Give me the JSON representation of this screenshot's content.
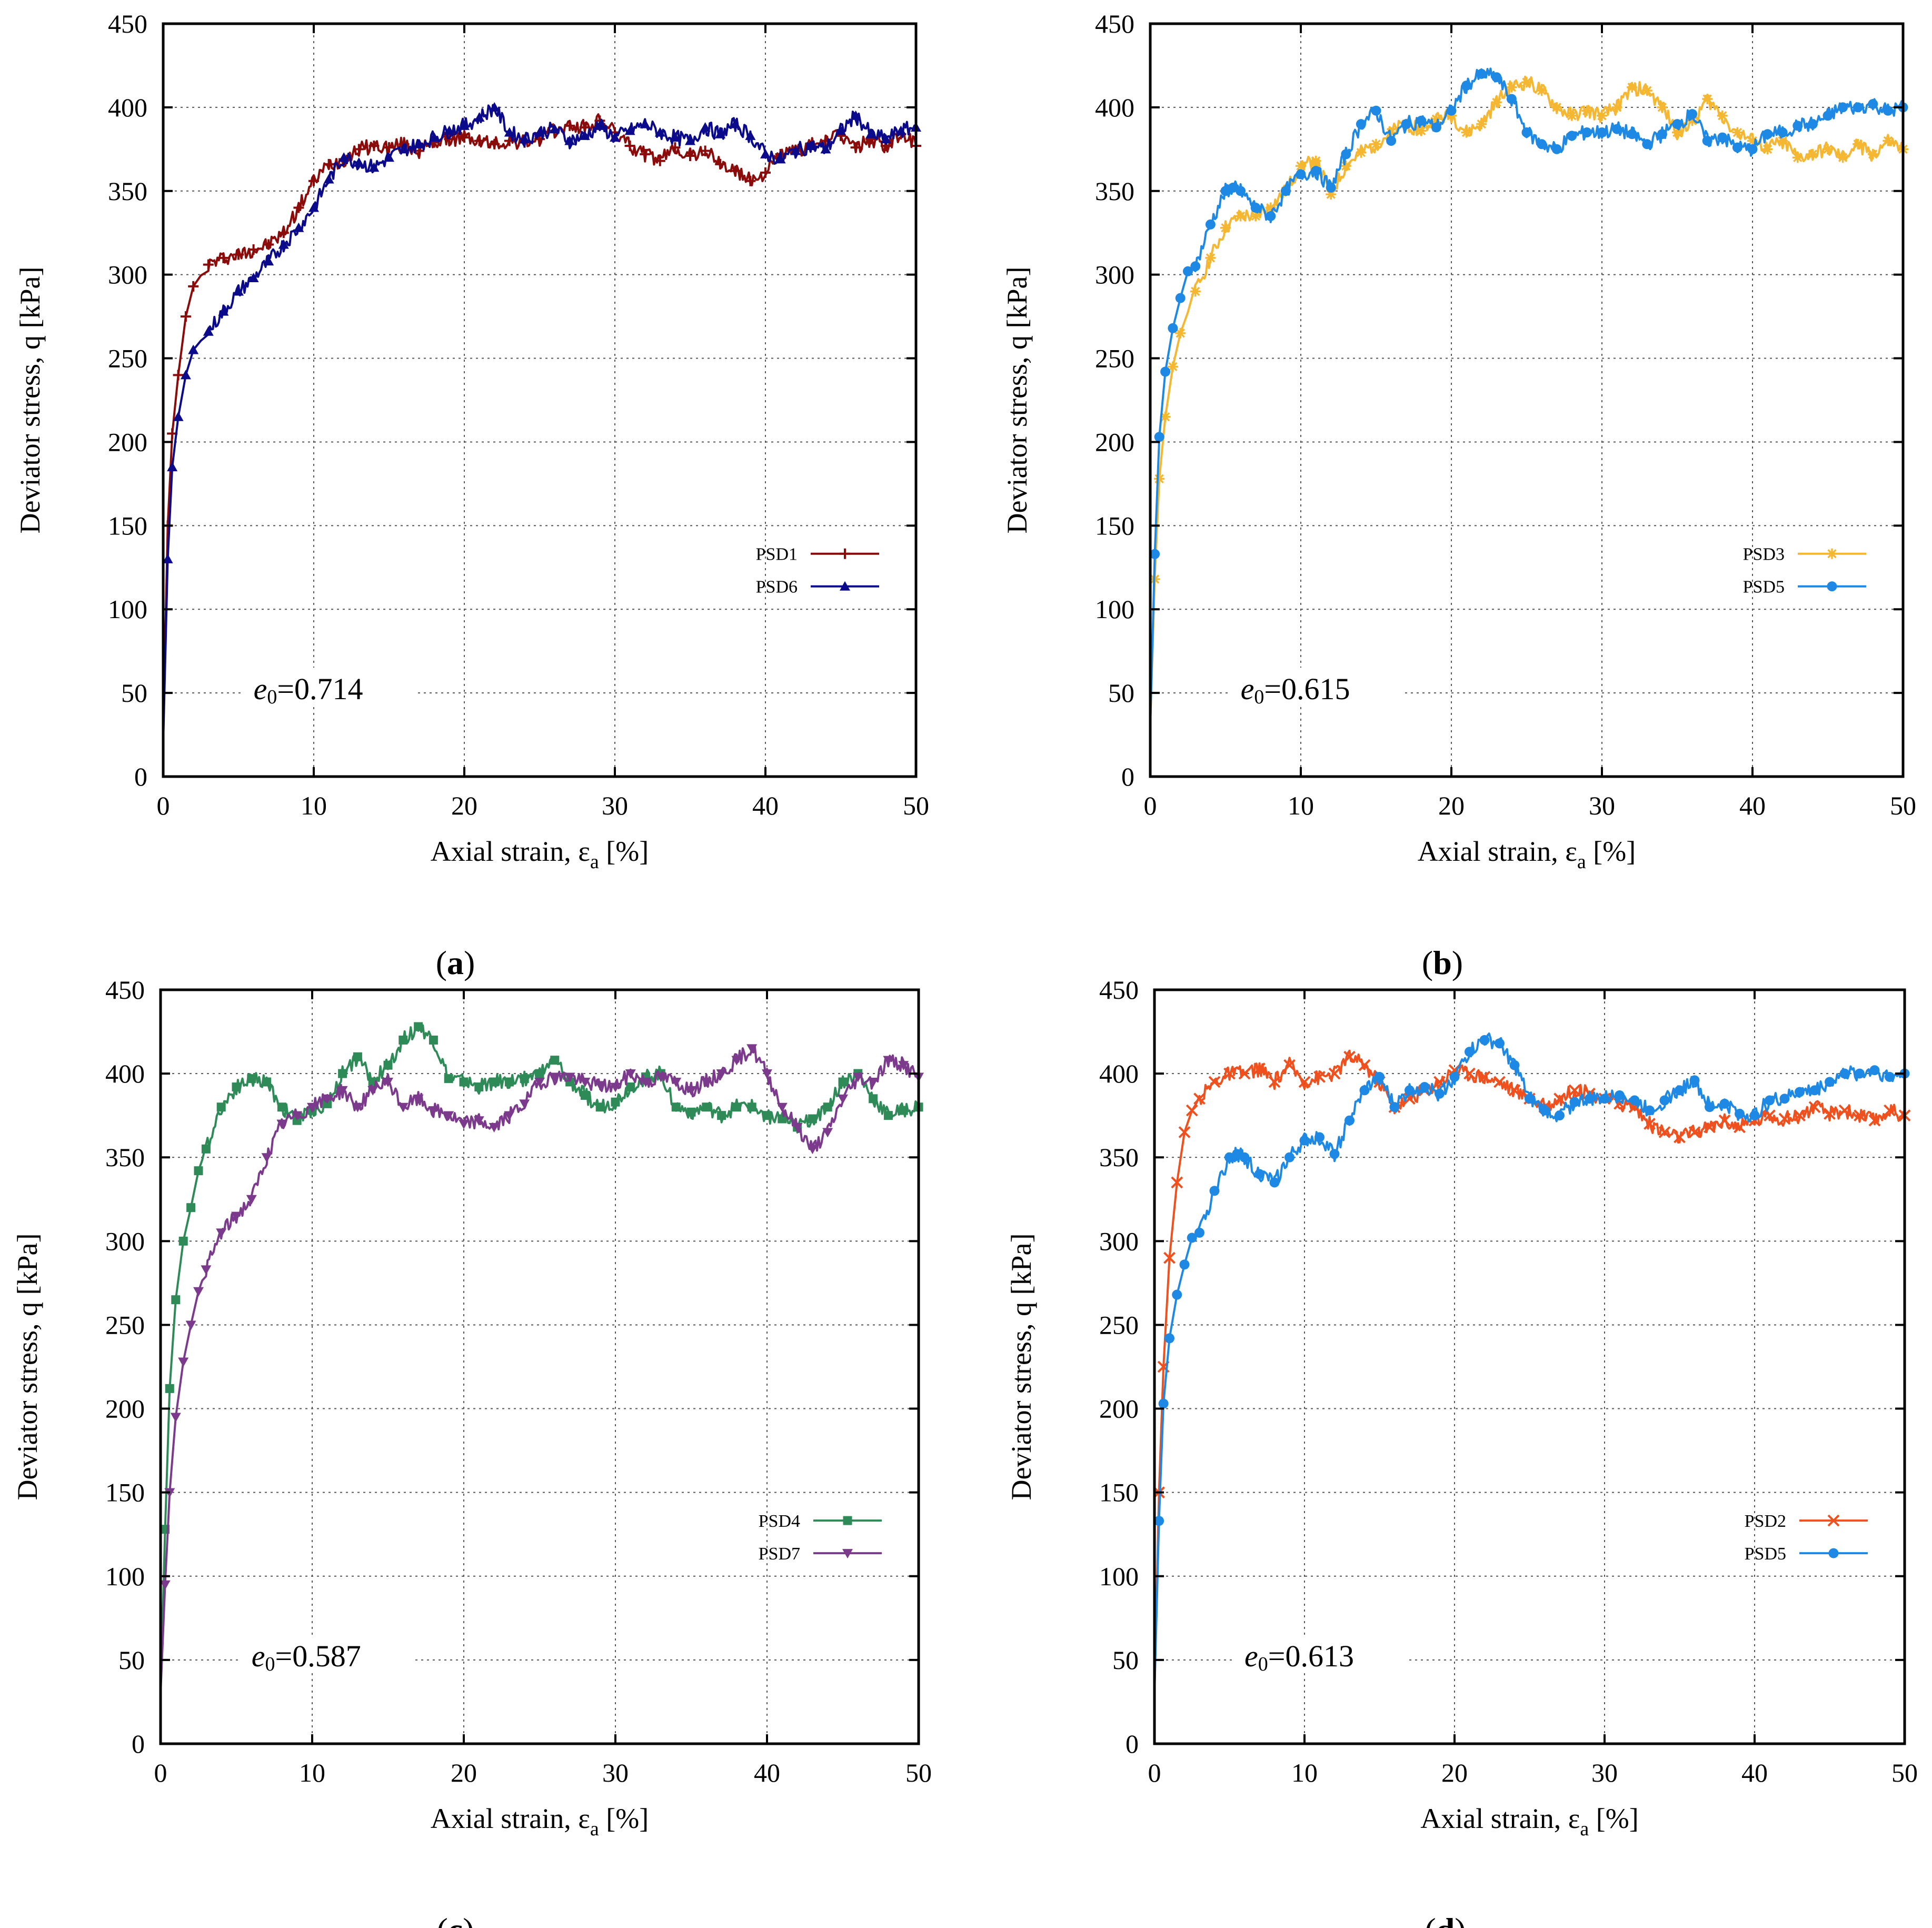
{
  "chart_data": [
    {
      "type": "line",
      "panel": "(a)",
      "xlabel": "Axial strain, ε",
      "xlabel_sub": "a",
      "xlabel_suffix": " [%]",
      "ylabel": "Deviator stress, q [kPa]",
      "xlim": [
        0,
        50
      ],
      "ylim": [
        0,
        450
      ],
      "xticks": [
        0,
        10,
        20,
        30,
        40,
        50
      ],
      "yticks": [
        0,
        50,
        100,
        150,
        200,
        250,
        300,
        350,
        400,
        450
      ],
      "grid": true,
      "legend_position": "right",
      "annotation": {
        "text_e": "e",
        "text_sub": "0",
        "text_value": "=0.714",
        "x": 6,
        "y": 50
      },
      "series": [
        {
          "name": "PSD1",
          "color": "#8b0a0a",
          "marker": "plus",
          "x": [
            0,
            0.3,
            0.6,
            1,
            1.5,
            2,
            3,
            4,
            5,
            6,
            7,
            8,
            9,
            10,
            11,
            12,
            13,
            14,
            15,
            16,
            17,
            18,
            19,
            20,
            21,
            22,
            23,
            24,
            25,
            26,
            27,
            28,
            29,
            30,
            31,
            32,
            33,
            34,
            35,
            36,
            37,
            38,
            39,
            40,
            41,
            42,
            43,
            44,
            45,
            46,
            47,
            48,
            49,
            50
          ],
          "y": [
            25,
            150,
            205,
            240,
            275,
            293,
            306,
            310,
            312,
            315,
            318,
            325,
            340,
            356,
            366,
            369,
            375,
            377,
            376,
            378,
            374,
            379,
            381,
            382,
            380,
            378,
            380,
            379,
            381,
            386,
            389,
            388,
            392,
            385,
            377,
            372,
            368,
            376,
            371,
            374,
            366,
            362,
            356,
            361,
            372,
            374,
            377,
            380,
            383,
            376,
            381,
            377,
            384,
            377
          ]
        },
        {
          "name": "PSD6",
          "color": "#0a0a8b",
          "marker": "triangle",
          "x": [
            0,
            0.3,
            0.6,
            1,
            1.5,
            2,
            3,
            4,
            5,
            6,
            7,
            8,
            9,
            10,
            11,
            12,
            13,
            14,
            15,
            16,
            17,
            18,
            19,
            20,
            21,
            22,
            23,
            24,
            25,
            26,
            27,
            28,
            29,
            30,
            31,
            32,
            33,
            34,
            35,
            36,
            37,
            38,
            39,
            40,
            41,
            42,
            43,
            44,
            45,
            46,
            47,
            48,
            49,
            50
          ],
          "y": [
            20,
            130,
            185,
            215,
            240,
            255,
            266,
            278,
            290,
            298,
            308,
            318,
            328,
            340,
            357,
            370,
            367,
            364,
            370,
            375,
            378,
            382,
            386,
            389,
            394,
            400,
            385,
            381,
            385,
            387,
            380,
            383,
            389,
            382,
            386,
            390,
            385,
            382,
            380,
            388,
            384,
            390,
            383,
            372,
            369,
            374,
            377,
            375,
            386,
            395,
            384,
            381,
            386,
            388
          ]
        }
      ]
    },
    {
      "type": "line",
      "panel": "(b)",
      "xlabel": "Axial strain, ε",
      "xlabel_sub": "a",
      "xlabel_suffix": " [%]",
      "ylabel": "Deviator stress, q [kPa]",
      "xlim": [
        0,
        50
      ],
      "ylim": [
        0,
        450
      ],
      "xticks": [
        0,
        10,
        20,
        30,
        40,
        50
      ],
      "yticks": [
        0,
        50,
        100,
        150,
        200,
        250,
        300,
        350,
        400,
        450
      ],
      "grid": true,
      "legend_position": "right",
      "annotation": {
        "text_e": "e",
        "text_sub": "0",
        "text_value": "=0.615",
        "x": 6,
        "y": 50
      },
      "series": [
        {
          "name": "PSD3",
          "color": "#f5b731",
          "marker": "star",
          "x": [
            0,
            0.3,
            0.6,
            1,
            1.5,
            2,
            3,
            4,
            5,
            6,
            7,
            8,
            9,
            10,
            11,
            12,
            13,
            14,
            15,
            16,
            17,
            18,
            19,
            20,
            21,
            22,
            23,
            24,
            25,
            26,
            27,
            28,
            29,
            30,
            31,
            32,
            33,
            34,
            35,
            36,
            37,
            38,
            39,
            40,
            41,
            42,
            43,
            44,
            45,
            46,
            47,
            48,
            49,
            50
          ],
          "y": [
            30,
            118,
            178,
            215,
            245,
            265,
            290,
            310,
            328,
            335,
            335,
            340,
            350,
            365,
            368,
            348,
            365,
            373,
            378,
            385,
            390,
            386,
            393,
            395,
            385,
            390,
            403,
            412,
            415,
            410,
            400,
            395,
            398,
            395,
            400,
            412,
            410,
            400,
            385,
            392,
            405,
            395,
            385,
            380,
            375,
            380,
            370,
            372,
            375,
            370,
            378,
            372,
            380,
            375
          ]
        },
        {
          "name": "PSD5",
          "color": "#1e88e5",
          "marker": "circle",
          "x": [
            0,
            0.3,
            0.6,
            1,
            1.5,
            2,
            2.5,
            3,
            4,
            5,
            5.5,
            6,
            7,
            8,
            9,
            10,
            11,
            12,
            13,
            14,
            15,
            16,
            17,
            18,
            19,
            20,
            21,
            22,
            23,
            24,
            25,
            26,
            27,
            28,
            29,
            30,
            31,
            32,
            33,
            34,
            35,
            36,
            37,
            38,
            39,
            40,
            41,
            42,
            43,
            44,
            45,
            46,
            47,
            48,
            49,
            50
          ],
          "y": [
            30,
            133,
            203,
            242,
            268,
            286,
            302,
            305,
            330,
            350,
            352,
            350,
            340,
            335,
            350,
            360,
            362,
            352,
            372,
            390,
            398,
            380,
            390,
            392,
            388,
            398,
            413,
            420,
            418,
            405,
            385,
            378,
            375,
            383,
            385,
            385,
            387,
            384,
            378,
            384,
            390,
            396,
            380,
            382,
            376,
            375,
            384,
            385,
            389,
            390,
            395,
            400,
            400,
            402,
            398,
            400
          ]
        }
      ]
    },
    {
      "type": "line",
      "panel": "(c)",
      "xlabel": "Axial strain, ε",
      "xlabel_sub": "a",
      "xlabel_suffix": " [%]",
      "ylabel": "Deviator stress, q [kPa]",
      "xlim": [
        0,
        50
      ],
      "ylim": [
        0,
        450
      ],
      "xticks": [
        0,
        10,
        20,
        30,
        40,
        50
      ],
      "yticks": [
        0,
        50,
        100,
        150,
        200,
        250,
        300,
        350,
        400,
        450
      ],
      "grid": true,
      "legend_position": "right",
      "annotation": {
        "text_e": "e",
        "text_sub": "0",
        "text_value": "=0.587",
        "x": 6,
        "y": 50
      },
      "series": [
        {
          "name": "PSD4",
          "color": "#2e8b57",
          "marker": "square",
          "x": [
            0,
            0.3,
            0.6,
            1,
            1.5,
            2,
            2.5,
            3,
            4,
            5,
            6,
            7,
            8,
            9,
            10,
            11,
            12,
            13,
            14,
            15,
            16,
            17,
            18,
            19,
            20,
            21,
            22,
            23,
            24,
            25,
            26,
            27,
            28,
            29,
            30,
            31,
            32,
            33,
            34,
            35,
            36,
            37,
            38,
            39,
            40,
            41,
            42,
            43,
            44,
            45,
            46,
            47,
            48,
            49,
            50
          ],
          "y": [
            30,
            128,
            212,
            265,
            300,
            320,
            342,
            355,
            380,
            392,
            397,
            395,
            380,
            372,
            378,
            382,
            400,
            410,
            395,
            405,
            420,
            428,
            420,
            397,
            395,
            392,
            395,
            395,
            397,
            400,
            408,
            395,
            387,
            380,
            383,
            392,
            398,
            400,
            380,
            377,
            380,
            375,
            380,
            380,
            375,
            373,
            368,
            373,
            380,
            395,
            400,
            385,
            375,
            378,
            380
          ]
        },
        {
          "name": "PSD7",
          "color": "#7b3a8c",
          "marker": "triangle-down",
          "x": [
            0,
            0.3,
            0.6,
            1,
            1.5,
            2,
            2.5,
            3,
            4,
            5,
            6,
            7,
            8,
            9,
            10,
            11,
            12,
            13,
            14,
            15,
            16,
            17,
            18,
            19,
            20,
            21,
            22,
            23,
            24,
            25,
            26,
            27,
            28,
            29,
            30,
            31,
            32,
            33,
            34,
            35,
            36,
            37,
            38,
            39,
            40,
            41,
            42,
            43,
            44,
            45,
            46,
            47,
            48,
            49,
            50
          ],
          "y": [
            30,
            95,
            150,
            195,
            228,
            250,
            270,
            283,
            305,
            315,
            325,
            350,
            370,
            375,
            380,
            385,
            390,
            380,
            390,
            395,
            380,
            385,
            378,
            375,
            370,
            372,
            368,
            375,
            382,
            395,
            398,
            398,
            395,
            393,
            392,
            400,
            395,
            398,
            395,
            390,
            395,
            400,
            408,
            415,
            400,
            380,
            368,
            355,
            365,
            385,
            398,
            395,
            408,
            405,
            398
          ]
        }
      ]
    },
    {
      "type": "line",
      "panel": "(d)",
      "xlabel": "Axial strain, ε",
      "xlabel_sub": "a",
      "xlabel_suffix": " [%]",
      "ylabel": "Deviator stress, q [kPa]",
      "xlim": [
        0,
        50
      ],
      "ylim": [
        0,
        450
      ],
      "xticks": [
        0,
        10,
        20,
        30,
        40,
        50
      ],
      "yticks": [
        0,
        50,
        100,
        150,
        200,
        250,
        300,
        350,
        400,
        450
      ],
      "grid": true,
      "legend_position": "right",
      "annotation": {
        "text_e": "e",
        "text_sub": "0",
        "text_value": "=0.613",
        "x": 6,
        "y": 50
      },
      "series": [
        {
          "name": "PSD2",
          "color": "#f0501e",
          "marker": "cross",
          "x": [
            0,
            0.3,
            0.6,
            1,
            1.5,
            2,
            2.5,
            3,
            4,
            5,
            6,
            7,
            8,
            9,
            10,
            11,
            12,
            13,
            14,
            15,
            16,
            17,
            18,
            19,
            20,
            21,
            22,
            23,
            24,
            25,
            26,
            27,
            28,
            29,
            30,
            31,
            32,
            33,
            34,
            35,
            36,
            37,
            38,
            39,
            40,
            41,
            42,
            43,
            44,
            45,
            46,
            47,
            48,
            49,
            50
          ],
          "y": [
            30,
            150,
            225,
            290,
            335,
            365,
            378,
            385,
            395,
            400,
            400,
            403,
            395,
            405,
            395,
            398,
            400,
            410,
            405,
            395,
            380,
            385,
            390,
            395,
            402,
            400,
            398,
            395,
            390,
            385,
            380,
            385,
            390,
            388,
            385,
            382,
            380,
            370,
            365,
            362,
            365,
            368,
            372,
            368,
            372,
            375,
            373,
            375,
            380,
            376,
            378,
            375,
            372,
            378,
            375
          ]
        },
        {
          "name": "PSD5",
          "color": "#1e88e5",
          "marker": "circle",
          "x": [
            0,
            0.3,
            0.6,
            1,
            1.5,
            2,
            2.5,
            3,
            4,
            5,
            5.5,
            6,
            7,
            8,
            9,
            10,
            11,
            12,
            13,
            14,
            15,
            16,
            17,
            18,
            19,
            20,
            21,
            22,
            23,
            24,
            25,
            26,
            27,
            28,
            29,
            30,
            31,
            32,
            33,
            34,
            35,
            36,
            37,
            38,
            39,
            40,
            41,
            42,
            43,
            44,
            45,
            46,
            47,
            48,
            49,
            50
          ],
          "y": [
            30,
            133,
            203,
            242,
            268,
            286,
            302,
            305,
            330,
            350,
            352,
            350,
            340,
            335,
            350,
            360,
            362,
            352,
            372,
            390,
            398,
            380,
            390,
            392,
            388,
            398,
            413,
            420,
            418,
            405,
            385,
            378,
            375,
            383,
            385,
            385,
            387,
            384,
            378,
            384,
            390,
            396,
            380,
            382,
            376,
            375,
            384,
            385,
            389,
            390,
            395,
            400,
            400,
            402,
            398,
            400
          ]
        }
      ]
    }
  ]
}
